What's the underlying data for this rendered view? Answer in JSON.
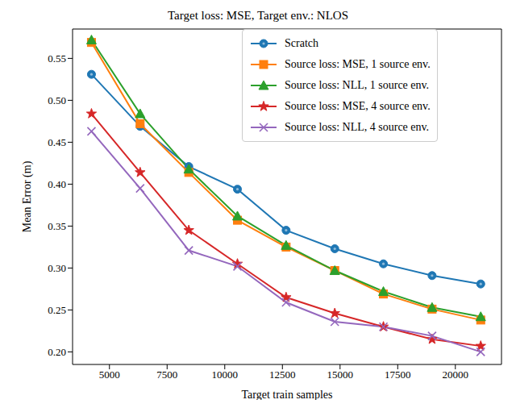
{
  "chart_data": {
    "type": "line",
    "title": "Target loss: MSE, Target env.: NLOS",
    "x_label": "Target train samples",
    "y_label": "Mean Error (m)",
    "x": [
      4220,
      6330,
      8440,
      10550,
      12660,
      14770,
      16880,
      18990,
      21100
    ],
    "xlim": [
      3400,
      22000
    ],
    "xticks": [
      5000,
      7500,
      10000,
      12500,
      15000,
      17500,
      20000
    ],
    "ylim": [
      0.185,
      0.585
    ],
    "yticks": [
      {
        "value": 0.2,
        "label": "0.20"
      },
      0.25,
      {
        "value": 0.3,
        "label": "0.30"
      },
      0.35,
      {
        "value": 0.4,
        "label": "0.40"
      },
      0.45,
      {
        "value": 0.5,
        "label": "0.50"
      },
      0.55
    ],
    "grid": false,
    "legend": "upper right",
    "series": [
      {
        "name": "Scratch",
        "color": "#1f77b4",
        "marker": "circle",
        "line_style": "solid",
        "values": [
          0.531,
          0.469,
          0.421,
          0.394,
          0.345,
          0.323,
          0.305,
          0.291,
          0.281
        ]
      },
      {
        "name": "Source loss: MSE, 1 source env.",
        "color": "#ff7f0e",
        "marker": "square",
        "line_style": "solid",
        "values": [
          0.569,
          0.472,
          0.414,
          0.357,
          0.325,
          0.297,
          0.269,
          0.251,
          0.238
        ]
      },
      {
        "name": "Source loss: NLL, 1 source env.",
        "color": "#2ca02c",
        "marker": "triangle",
        "line_style": "solid",
        "values": [
          0.572,
          0.484,
          0.418,
          0.362,
          0.327,
          0.297,
          0.272,
          0.253,
          0.242
        ]
      },
      {
        "name": "Source loss: MSE, 4 source env.",
        "color": "#d62728",
        "marker": "star",
        "line_style": "solid",
        "values": [
          0.484,
          0.414,
          0.345,
          0.305,
          0.265,
          0.246,
          0.23,
          0.215,
          0.207
        ]
      },
      {
        "name": "Source loss: NLL, 4 source env.",
        "color": "#9467bd",
        "marker": "x",
        "line_style": "solid",
        "values": [
          0.463,
          0.395,
          0.321,
          0.302,
          0.259,
          0.236,
          0.23,
          0.219,
          0.2
        ]
      }
    ]
  }
}
